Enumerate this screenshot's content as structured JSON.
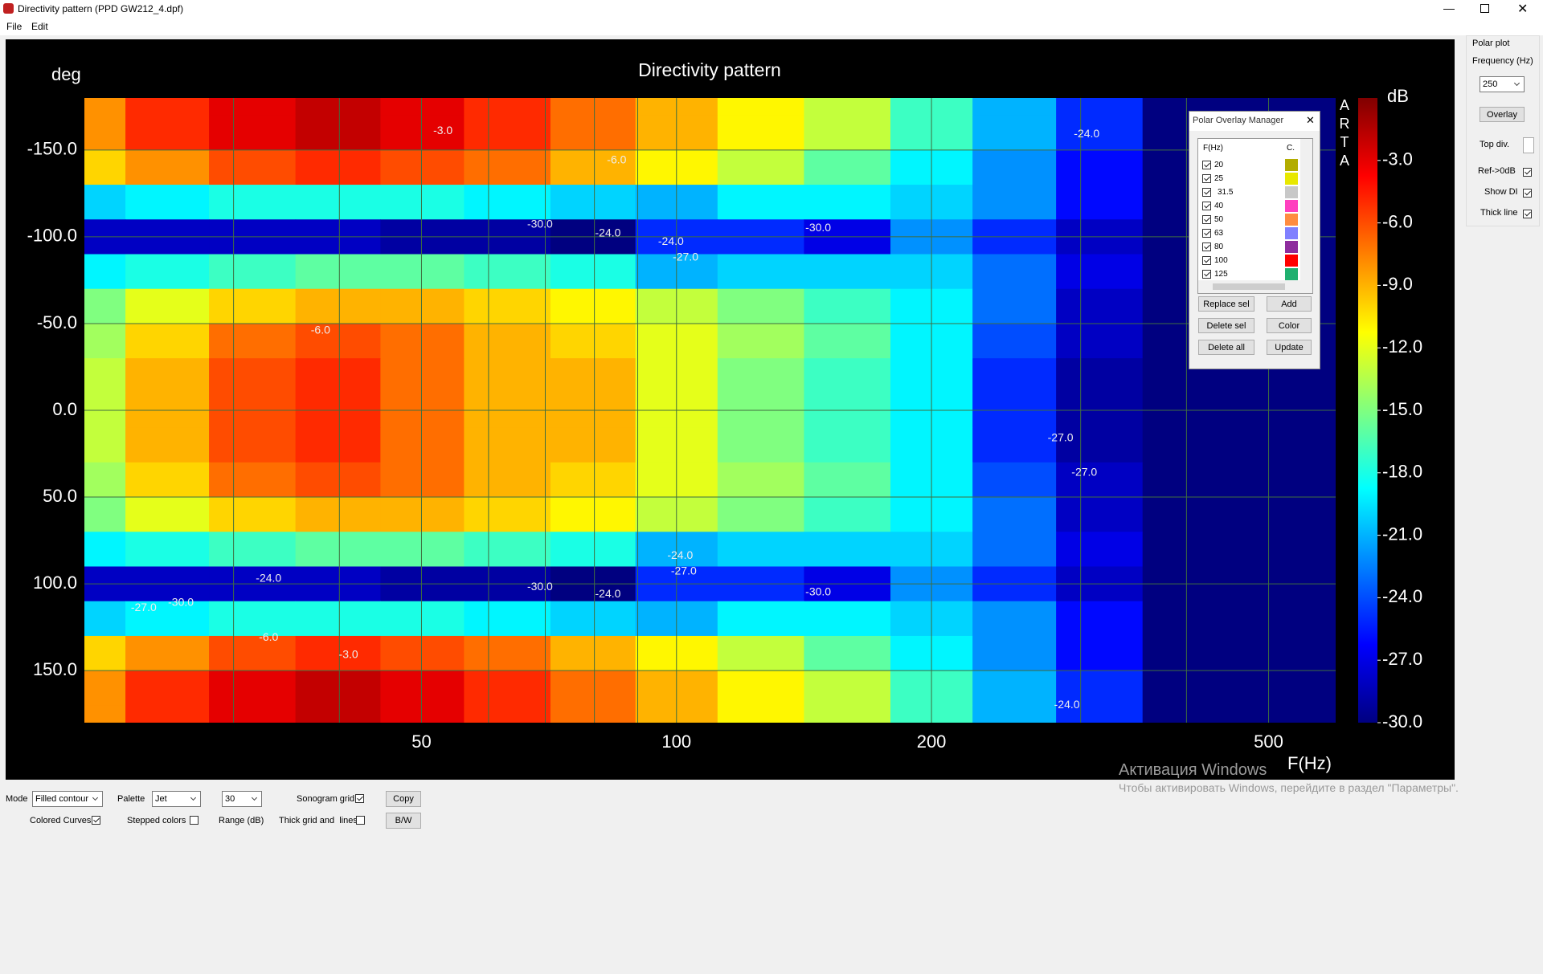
{
  "window": {
    "title": "Directivity pattern (PPD GW212_4.dpf)",
    "menu": [
      "File",
      "Edit"
    ]
  },
  "chart_data": {
    "type": "heatmap",
    "title": "Directivity pattern",
    "y_label": "deg",
    "x_label": "F(Hz)",
    "watermark": "ARTA",
    "x_scale": "log",
    "xlim": [
      20,
      600
    ],
    "xticks": [
      50,
      100,
      200,
      500
    ],
    "xgrid_minor": [
      30,
      40,
      60,
      70,
      80,
      90,
      300,
      400
    ],
    "ylim": [
      -180,
      180
    ],
    "y_inverted": true,
    "yticks": [
      {
        "value": -150,
        "label": "-150.0"
      },
      {
        "value": -100,
        "label": "-100.0"
      },
      {
        "value": -50,
        "label": "-50.0"
      },
      {
        "value": 0,
        "label": "0.0"
      },
      {
        "value": 50,
        "label": "50.0"
      },
      {
        "value": 100,
        "label": "100.0"
      },
      {
        "value": 150,
        "label": "150.0"
      }
    ],
    "grid": true,
    "grid_color": "#3f6e3f",
    "colormap": "jet",
    "colorbar_label": "dB",
    "zlim": [
      -30,
      0
    ],
    "zticks": [
      {
        "value": -3,
        "label": "-3.0"
      },
      {
        "value": -6,
        "label": "-6.0"
      },
      {
        "value": -9,
        "label": "-9.0"
      },
      {
        "value": -12,
        "label": "-12.0"
      },
      {
        "value": -15,
        "label": "-15.0"
      },
      {
        "value": -18,
        "label": "-18.0"
      },
      {
        "value": -21,
        "label": "-21.0"
      },
      {
        "value": -24,
        "label": "-24.0"
      },
      {
        "value": -27,
        "label": "-27.0"
      },
      {
        "value": -30,
        "label": "-30.0"
      }
    ],
    "x": [
      20,
      25,
      31.5,
      40,
      50,
      63,
      80,
      100,
      125,
      160,
      200,
      250,
      315,
      400,
      500
    ],
    "y": [
      -180,
      -160,
      -140,
      -120,
      -100,
      -80,
      -60,
      -40,
      -20,
      0,
      20,
      40,
      60,
      80,
      100,
      120,
      140,
      160,
      180
    ],
    "z": [
      [
        -8,
        -5,
        -3,
        -2,
        -3,
        -5,
        -7,
        -9,
        -11,
        -13,
        -17,
        -21,
        -25,
        -30,
        -30
      ],
      [
        -8,
        -5,
        -3,
        -2,
        -3,
        -5,
        -7,
        -9,
        -11,
        -13,
        -17,
        -21,
        -25,
        -30,
        -30
      ],
      [
        -10,
        -8,
        -6,
        -5,
        -6,
        -7,
        -9,
        -11,
        -13,
        -16,
        -19,
        -22,
        -26,
        -30,
        -30
      ],
      [
        -20,
        -19,
        -18,
        -18,
        -18,
        -19,
        -20,
        -21,
        -19,
        -19,
        -20,
        -22,
        -26,
        -30,
        -30
      ],
      [
        -28,
        -28,
        -28,
        -28,
        -29,
        -29,
        -30,
        -25,
        -25,
        -27,
        -22,
        -25,
        -28,
        -30,
        -30
      ],
      [
        -19,
        -18,
        -17,
        -16,
        -16,
        -17,
        -18,
        -21,
        -20,
        -20,
        -20,
        -23,
        -27,
        -30,
        -30
      ],
      [
        -15,
        -12,
        -10,
        -9,
        -9,
        -10,
        -11,
        -13,
        -15,
        -17,
        -19,
        -23,
        -28,
        -30,
        -30
      ],
      [
        -14,
        -10,
        -7,
        -6,
        -7,
        -9,
        -10,
        -12,
        -14,
        -16,
        -19,
        -24,
        -28,
        -30,
        -30
      ],
      [
        -13,
        -9,
        -6,
        -5,
        -7,
        -9,
        -9,
        -12,
        -15,
        -17,
        -19,
        -25,
        -29,
        -30,
        -30
      ],
      [
        -13,
        -9,
        -6,
        -5,
        -7,
        -9,
        -9,
        -12,
        -15,
        -17,
        -19,
        -25,
        -29,
        -30,
        -30
      ],
      [
        -13,
        -9,
        -6,
        -5,
        -7,
        -9,
        -9,
        -12,
        -15,
        -17,
        -19,
        -25,
        -29,
        -30,
        -30
      ],
      [
        -14,
        -10,
        -7,
        -6,
        -7,
        -9,
        -10,
        -12,
        -14,
        -16,
        -19,
        -24,
        -28,
        -30,
        -30
      ],
      [
        -15,
        -12,
        -10,
        -9,
        -9,
        -10,
        -11,
        -13,
        -15,
        -17,
        -19,
        -23,
        -28,
        -30,
        -30
      ],
      [
        -19,
        -18,
        -17,
        -16,
        -16,
        -17,
        -18,
        -21,
        -20,
        -20,
        -20,
        -23,
        -27,
        -30,
        -30
      ],
      [
        -28,
        -28,
        -28,
        -28,
        -29,
        -29,
        -30,
        -25,
        -25,
        -27,
        -22,
        -25,
        -28,
        -30,
        -30
      ],
      [
        -20,
        -19,
        -18,
        -18,
        -18,
        -19,
        -20,
        -21,
        -19,
        -19,
        -20,
        -22,
        -26,
        -30,
        -30
      ],
      [
        -10,
        -8,
        -6,
        -5,
        -6,
        -7,
        -9,
        -11,
        -13,
        -16,
        -19,
        -22,
        -26,
        -30,
        -30
      ],
      [
        -8,
        -5,
        -3,
        -2,
        -3,
        -5,
        -7,
        -9,
        -11,
        -13,
        -17,
        -21,
        -25,
        -30,
        -30
      ],
      [
        -8,
        -5,
        -3,
        -2,
        -3,
        -5,
        -7,
        -9,
        -11,
        -13,
        -17,
        -21,
        -25,
        -30,
        -30
      ]
    ],
    "annotations": [
      {
        "x": 53,
        "y": -161,
        "text": "-3.0"
      },
      {
        "x": 85,
        "y": -144,
        "text": "-6.0"
      },
      {
        "x": 69,
        "y": -107,
        "text": "-30.0"
      },
      {
        "x": 83,
        "y": -102,
        "text": "-24.0"
      },
      {
        "x": 98.5,
        "y": -97,
        "text": "-24.0"
      },
      {
        "x": 102.5,
        "y": -88,
        "text": "-27.0"
      },
      {
        "x": 147,
        "y": -105,
        "text": "-30.0"
      },
      {
        "x": 305,
        "y": -159,
        "text": "-24.0"
      },
      {
        "x": 38,
        "y": -46,
        "text": "-6.0"
      },
      {
        "x": 284,
        "y": 16,
        "text": "-27.0"
      },
      {
        "x": 303,
        "y": 36,
        "text": "-27.0"
      },
      {
        "x": 101,
        "y": 84,
        "text": "-24.0"
      },
      {
        "x": 102,
        "y": 93,
        "text": "-27.0"
      },
      {
        "x": 33,
        "y": 97,
        "text": "-24.0"
      },
      {
        "x": 69,
        "y": 102,
        "text": "-30.0"
      },
      {
        "x": 83,
        "y": 106,
        "text": "-24.0"
      },
      {
        "x": 147,
        "y": 105,
        "text": "-30.0"
      },
      {
        "x": 41,
        "y": 141,
        "text": "-3.0"
      },
      {
        "x": 33,
        "y": 131,
        "text": "-6.0"
      },
      {
        "x": 289,
        "y": 170,
        "text": "-24.0"
      },
      {
        "x": 23.5,
        "y": 114,
        "text": "-27.0"
      },
      {
        "x": 26,
        "y": 111,
        "text": "-30.0"
      }
    ]
  },
  "overlay_manager": {
    "title": "Polar Overlay Manager",
    "columns": [
      "F(Hz)",
      "C."
    ],
    "items": [
      {
        "f": 20,
        "color": "#b3ad00",
        "checked": true
      },
      {
        "f": 25,
        "color": "#e8e800",
        "checked": true
      },
      {
        "f": 31.5,
        "color": "#c8c8c8",
        "checked": true
      },
      {
        "f": 40,
        "color": "#ff40bf",
        "checked": true
      },
      {
        "f": 50,
        "color": "#ff8c40",
        "checked": true
      },
      {
        "f": 63,
        "color": "#8080ff",
        "checked": true
      },
      {
        "f": 80,
        "color": "#8e2d9e",
        "checked": true
      },
      {
        "f": 100,
        "color": "#ff0000",
        "checked": true
      },
      {
        "f": 125,
        "color": "#20b070",
        "checked": true
      }
    ],
    "buttons": [
      "Replace sel",
      "Add",
      "Delete sel",
      "Color",
      "Delete all",
      "Update"
    ]
  },
  "polar_plot": {
    "title": "Polar plot",
    "frequency_label": "Frequency (Hz)",
    "frequency": 250,
    "overlay": "Overlay",
    "top_div": "Top div.",
    "options": [
      {
        "label": "Ref->0dB",
        "checked": true
      },
      {
        "label": "Show DI",
        "checked": true
      },
      {
        "label": "Thick line",
        "checked": true
      }
    ]
  },
  "controls": {
    "mode_label": "Mode",
    "mode": "Filled contour",
    "palette_label": "Palette",
    "palette": "Jet",
    "range": 30,
    "range_label": "Range (dB)",
    "sonogram_grid": {
      "label": "Sonogram grid",
      "checked": true
    },
    "colored_curves": {
      "label": "Colored Curves",
      "checked": true
    },
    "stepped_colors": {
      "label": "Stepped colors",
      "checked": false
    },
    "thick_grid": {
      "label": "Thick grid and  lines",
      "checked": false
    },
    "copy": "Copy",
    "bw": "B/W"
  },
  "activation": {
    "title": "Активация Windows",
    "text": "Чтобы активировать Windows, перейдите в раздел \"Параметры\"."
  }
}
